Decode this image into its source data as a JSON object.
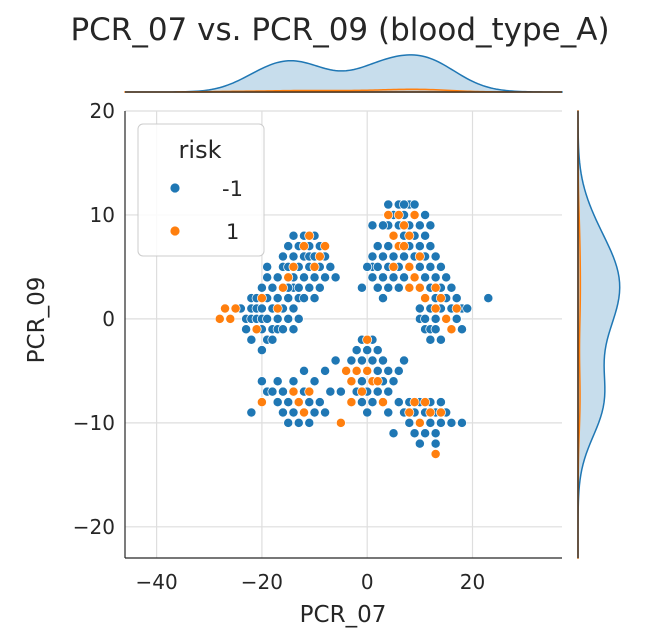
{
  "chart_data": {
    "type": "scatter",
    "title": "PCR_07 vs. PCR_09 (blood_type_A)",
    "xlabel": "PCR_07",
    "ylabel": "PCR_09",
    "xlim": [
      -46,
      37
    ],
    "ylim": [
      -23,
      20
    ],
    "xticks": [
      -40,
      -20,
      0,
      20
    ],
    "yticks": [
      -20,
      -10,
      0,
      10,
      20
    ],
    "xtick_labels": [
      "−40",
      "−20",
      "0",
      "20"
    ],
    "ytick_labels": [
      "−20",
      "−10",
      "0",
      "10",
      "20"
    ],
    "grid": true,
    "marginals": "kde",
    "legend": {
      "title": "risk",
      "placement": "top-left",
      "entries": [
        {
          "label": "-1",
          "color": "#1f77b4"
        },
        {
          "label": "1",
          "color": "#ff7f0e"
        }
      ]
    },
    "series": [
      {
        "name": "-1",
        "color": "#1f77b4",
        "points": [
          [
            -24,
            1
          ],
          [
            -23,
            0
          ],
          [
            -23,
            -1
          ],
          [
            -22,
            1
          ],
          [
            -22,
            0
          ],
          [
            -22,
            2
          ],
          [
            -21,
            -1
          ],
          [
            -21,
            0
          ],
          [
            -21,
            1
          ],
          [
            -21,
            2
          ],
          [
            -20,
            -1
          ],
          [
            -20,
            0
          ],
          [
            -20,
            1
          ],
          [
            -20,
            3
          ],
          [
            -19,
            0
          ],
          [
            -19,
            -2
          ],
          [
            -19,
            2
          ],
          [
            -19,
            4
          ],
          [
            -18,
            1
          ],
          [
            -18,
            -1
          ],
          [
            -18,
            3
          ],
          [
            -18,
            -2
          ],
          [
            -17,
            0
          ],
          [
            -17,
            2
          ],
          [
            -17,
            4
          ],
          [
            -17,
            -1
          ],
          [
            -16,
            1
          ],
          [
            -16,
            3
          ],
          [
            -16,
            -1
          ],
          [
            -15,
            2
          ],
          [
            -15,
            0
          ],
          [
            -15,
            4
          ],
          [
            -14,
            1
          ],
          [
            -14,
            -1
          ],
          [
            -14,
            3
          ],
          [
            -13,
            2
          ],
          [
            -13,
            0
          ],
          [
            -20,
            -3
          ],
          [
            -19,
            5
          ],
          [
            -22,
            -2
          ],
          [
            -16,
            5
          ],
          [
            -16,
            6
          ],
          [
            -15,
            7
          ],
          [
            -15,
            5
          ],
          [
            -14,
            6
          ],
          [
            -14,
            4
          ],
          [
            -14,
            8
          ],
          [
            -13,
            7
          ],
          [
            -13,
            5
          ],
          [
            -13,
            3
          ],
          [
            -12,
            6
          ],
          [
            -12,
            4
          ],
          [
            -12,
            8
          ],
          [
            -11,
            7
          ],
          [
            -11,
            5
          ],
          [
            -11,
            3
          ],
          [
            -11,
            6
          ],
          [
            -10,
            8
          ],
          [
            -10,
            6
          ],
          [
            -10,
            4
          ],
          [
            -10,
            2
          ],
          [
            -9,
            7
          ],
          [
            -9,
            5
          ],
          [
            -9,
            3
          ],
          [
            -8,
            6
          ],
          [
            -8,
            4
          ],
          [
            -7,
            5
          ],
          [
            -6,
            4
          ],
          [
            -12,
            2
          ],
          [
            -15,
            3
          ],
          [
            1,
            6
          ],
          [
            1,
            5
          ],
          [
            1,
            4
          ],
          [
            2,
            5
          ],
          [
            2,
            3
          ],
          [
            2,
            7
          ],
          [
            3,
            4
          ],
          [
            3,
            6
          ],
          [
            3,
            2
          ],
          [
            4,
            5
          ],
          [
            4,
            3
          ],
          [
            4,
            7
          ],
          [
            4,
            9
          ],
          [
            5,
            4
          ],
          [
            5,
            6
          ],
          [
            5,
            8
          ],
          [
            5,
            10
          ],
          [
            6,
            5
          ],
          [
            6,
            7
          ],
          [
            6,
            3
          ],
          [
            6,
            9
          ],
          [
            7,
            6
          ],
          [
            7,
            4
          ],
          [
            7,
            8
          ],
          [
            7,
            10
          ],
          [
            8,
            5
          ],
          [
            8,
            3
          ],
          [
            8,
            7
          ],
          [
            8,
            9
          ],
          [
            8,
            11
          ],
          [
            9,
            6
          ],
          [
            9,
            4
          ],
          [
            9,
            8
          ],
          [
            9,
            10
          ],
          [
            10,
            5
          ],
          [
            10,
            3
          ],
          [
            10,
            7
          ],
          [
            10,
            9
          ],
          [
            11,
            6
          ],
          [
            11,
            4
          ],
          [
            11,
            8
          ],
          [
            12,
            5
          ],
          [
            12,
            3
          ],
          [
            12,
            7
          ],
          [
            13,
            4
          ],
          [
            13,
            2
          ],
          [
            13,
            6
          ],
          [
            14,
            3
          ],
          [
            14,
            5
          ],
          [
            15,
            4
          ],
          [
            15,
            2
          ],
          [
            16,
            3
          ],
          [
            17,
            2
          ],
          [
            18,
            1
          ],
          [
            -1,
            3
          ],
          [
            0,
            5
          ],
          [
            3,
            9
          ],
          [
            6,
            11
          ],
          [
            11,
            10
          ],
          [
            12,
            9
          ],
          [
            1,
            9
          ],
          [
            4,
            11
          ],
          [
            7,
            11
          ],
          [
            9,
            11
          ],
          [
            10,
            1
          ],
          [
            10,
            0
          ],
          [
            11,
            2
          ],
          [
            11,
            0
          ],
          [
            11,
            -1
          ],
          [
            12,
            1
          ],
          [
            12,
            -1
          ],
          [
            13,
            0
          ],
          [
            13,
            2
          ],
          [
            13,
            -1
          ],
          [
            14,
            1
          ],
          [
            15,
            0
          ],
          [
            15,
            2
          ],
          [
            16,
            1
          ],
          [
            16,
            -1
          ],
          [
            17,
            0
          ],
          [
            18,
            -1
          ],
          [
            19,
            1
          ],
          [
            14,
            -2
          ],
          [
            12,
            -2
          ],
          [
            23,
            2
          ],
          [
            -3,
            -4
          ],
          [
            -3,
            -6
          ],
          [
            -2,
            -3
          ],
          [
            -2,
            -5
          ],
          [
            -2,
            -7
          ],
          [
            -1,
            -4
          ],
          [
            -1,
            -6
          ],
          [
            -1,
            -8
          ],
          [
            0,
            -3
          ],
          [
            0,
            -5
          ],
          [
            0,
            -7
          ],
          [
            0,
            -9
          ],
          [
            1,
            -4
          ],
          [
            1,
            -6
          ],
          [
            1,
            -8
          ],
          [
            2,
            -3
          ],
          [
            2,
            -5
          ],
          [
            2,
            -7
          ],
          [
            3,
            -4
          ],
          [
            3,
            -6
          ],
          [
            4,
            -5
          ],
          [
            4,
            -7
          ],
          [
            5,
            -6
          ],
          [
            6,
            -5
          ],
          [
            7,
            -4
          ],
          [
            -4,
            -5
          ],
          [
            -5,
            -7
          ],
          [
            -1,
            -2
          ],
          [
            1,
            -2
          ],
          [
            -22,
            -9
          ],
          [
            -20,
            -6
          ],
          [
            -19,
            -7
          ],
          [
            -18,
            -7
          ],
          [
            -17,
            -8
          ],
          [
            -17,
            -6
          ],
          [
            -16,
            -9
          ],
          [
            -16,
            -7
          ],
          [
            -15,
            -10
          ],
          [
            -15,
            -8
          ],
          [
            -14,
            -9
          ],
          [
            -14,
            -7
          ],
          [
            -14,
            -6
          ],
          [
            -13,
            -10
          ],
          [
            -13,
            -8
          ],
          [
            -12,
            -9
          ],
          [
            -12,
            -7
          ],
          [
            -11,
            -10
          ],
          [
            -11,
            -8
          ],
          [
            -10,
            -9
          ],
          [
            -10,
            -6
          ],
          [
            -9,
            -8
          ],
          [
            -8,
            -9
          ],
          [
            -7,
            -7
          ],
          [
            -8,
            -5
          ],
          [
            -12,
            -5
          ],
          [
            -6,
            -4
          ],
          [
            6,
            -8
          ],
          [
            7,
            -9
          ],
          [
            8,
            -10
          ],
          [
            8,
            -8
          ],
          [
            9,
            -11
          ],
          [
            9,
            -9
          ],
          [
            10,
            -10
          ],
          [
            10,
            -8
          ],
          [
            10,
            -12
          ],
          [
            11,
            -9
          ],
          [
            11,
            -11
          ],
          [
            12,
            -10
          ],
          [
            12,
            -8
          ],
          [
            13,
            -9
          ],
          [
            13,
            -11
          ],
          [
            14,
            -10
          ],
          [
            14,
            -8
          ],
          [
            15,
            -9
          ],
          [
            16,
            -10
          ],
          [
            18,
            -10
          ],
          [
            5,
            -11
          ],
          [
            4,
            -9
          ],
          [
            13,
            -12
          ]
        ]
      },
      {
        "name": "1",
        "color": "#ff7f0e",
        "points": [
          [
            -28,
            0
          ],
          [
            -27,
            1
          ],
          [
            -26,
            0
          ],
          [
            -25,
            1
          ],
          [
            -21,
            -1
          ],
          [
            -17,
            1
          ],
          [
            -20,
            2
          ],
          [
            -16,
            3
          ],
          [
            -14,
            5
          ],
          [
            -12,
            7
          ],
          [
            -11,
            8
          ],
          [
            -9,
            6
          ],
          [
            -8,
            7
          ],
          [
            -15,
            4
          ],
          [
            -10,
            5
          ],
          [
            4,
            10
          ],
          [
            5,
            8
          ],
          [
            6,
            10
          ],
          [
            7,
            9
          ],
          [
            8,
            8
          ],
          [
            9,
            10
          ],
          [
            6,
            7
          ],
          [
            7,
            7
          ],
          [
            5,
            5
          ],
          [
            8,
            3
          ],
          [
            9,
            4
          ],
          [
            10,
            3
          ],
          [
            11,
            2
          ],
          [
            13,
            3
          ],
          [
            14,
            2
          ],
          [
            10,
            6
          ],
          [
            8,
            5
          ],
          [
            13,
            1
          ],
          [
            15,
            0
          ],
          [
            16,
            -1
          ],
          [
            17,
            1
          ],
          [
            -4,
            -5
          ],
          [
            -3,
            -6
          ],
          [
            -1,
            -7
          ],
          [
            0,
            -5
          ],
          [
            1,
            -6
          ],
          [
            2,
            -6
          ],
          [
            3,
            -8
          ],
          [
            0,
            -2
          ],
          [
            -2,
            -5
          ],
          [
            -5,
            -10
          ],
          [
            -3,
            -8
          ],
          [
            -20,
            -8
          ],
          [
            -14,
            -7
          ],
          [
            -13,
            -8
          ],
          [
            -12,
            -9
          ],
          [
            -11,
            -7
          ],
          [
            8,
            -9
          ],
          [
            9,
            -8
          ],
          [
            11,
            -8
          ],
          [
            12,
            -9
          ],
          [
            14,
            -9
          ],
          [
            10,
            -10
          ],
          [
            13,
            -13
          ]
        ]
      }
    ]
  }
}
